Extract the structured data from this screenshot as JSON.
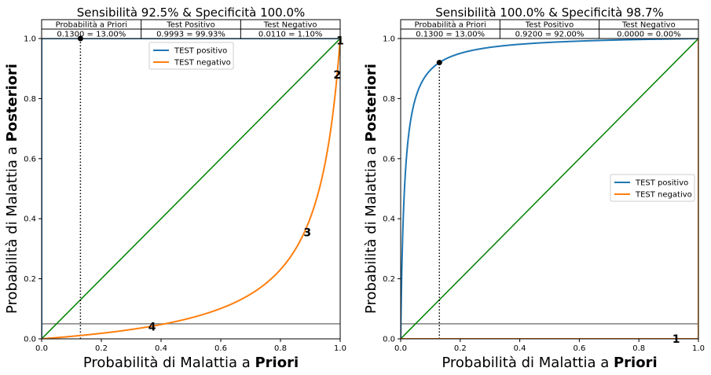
{
  "chart_data": [
    {
      "type": "line",
      "title": "Sensibilità 92.5%  &  Specificità 100.0%",
      "xlabel_prefix": "Probabilità di Malattia a ",
      "xlabel_bold": "Priori",
      "ylabel_prefix": "Probabilità di Malattia a ",
      "ylabel_bold": "Posteriori",
      "xlim": [
        0,
        1
      ],
      "ylim": [
        0,
        1
      ],
      "xticks": [
        "0.0",
        "0.2",
        "0.4",
        "0.6",
        "0.8",
        "1.0"
      ],
      "yticks": [
        "0.0",
        "0.2",
        "0.4",
        "0.6",
        "0.8",
        "1.0"
      ],
      "grid": false,
      "legend_position": "upper-center",
      "sensitivity": 0.925,
      "specificity": 1.0,
      "prior": 0.13,
      "threshold_line": 0.05,
      "table": {
        "headers": [
          "Probabilità a Priori",
          "Test Positivo",
          "Test Negativo"
        ],
        "values": [
          "0.1300 = 13.00%",
          "0.9993 = 99.93%",
          "0.0110 = 1.10%"
        ]
      },
      "series": [
        {
          "name": "TEST positivo",
          "color": "#1f77b4",
          "kind": "positive"
        },
        {
          "name": "TEST negativo",
          "color": "#ff7f0e",
          "kind": "negative"
        }
      ],
      "diagonal_color": "#008000",
      "threshold_color": "#808080",
      "markers": [
        {
          "text": "1",
          "x": 1.0,
          "y": 0.993
        },
        {
          "text": "2",
          "x": 0.99,
          "y": 0.88
        },
        {
          "text": "3",
          "x": 0.89,
          "y": 0.355
        },
        {
          "text": "4",
          "x": 0.37,
          "y": 0.04
        }
      ]
    },
    {
      "type": "line",
      "title": "Sensibilità 100.0%  &  Specificità 98.7%",
      "xlabel_prefix": "Probabilità di Malattia a ",
      "xlabel_bold": "Priori",
      "ylabel_prefix": "Probabilità di Malattia a ",
      "ylabel_bold": "Posteriori",
      "xlim": [
        0,
        1
      ],
      "ylim": [
        0,
        1
      ],
      "xticks": [
        "0.0",
        "0.2",
        "0.4",
        "0.6",
        "0.8",
        "1.0"
      ],
      "yticks": [
        "0.0",
        "0.2",
        "0.4",
        "0.6",
        "0.8",
        "1.0"
      ],
      "grid": false,
      "legend_position": "center-right",
      "sensitivity": 1.0,
      "specificity": 0.987,
      "prior": 0.13,
      "threshold_line": 0.05,
      "table": {
        "headers": [
          "Probabilità a Priori",
          "Test Positivo",
          "Test Negativo"
        ],
        "values": [
          "0.1300 = 13.00%",
          "0.9200 = 92.00%",
          "0.0000 = 0.00%"
        ]
      },
      "series": [
        {
          "name": "TEST positivo",
          "color": "#1f77b4",
          "kind": "positive"
        },
        {
          "name": "TEST negativo",
          "color": "#ff7f0e",
          "kind": "negative"
        }
      ],
      "diagonal_color": "#008000",
      "threshold_color": "#808080",
      "markers": [
        {
          "text": "1",
          "x": 0.925,
          "y": 0.0
        }
      ]
    }
  ]
}
